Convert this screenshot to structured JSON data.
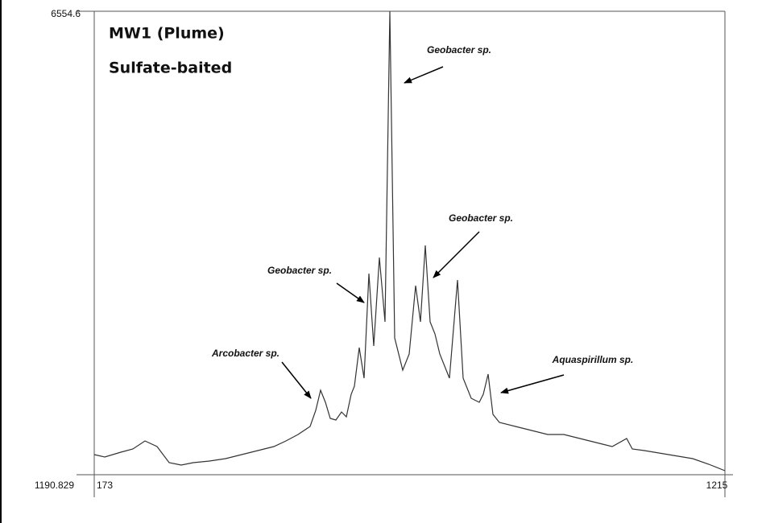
{
  "chart_data": {
    "type": "line",
    "title": "MW1 (Plume)",
    "subtitle": "Sulfate-baited",
    "xlim": [
      173,
      1215
    ],
    "ylim": [
      1190.829,
      6554.6
    ],
    "xticks": [
      173,
      1215
    ],
    "yticks": [
      1190.829,
      6554.6
    ],
    "color": "#333333",
    "annotations": [
      "Geobacter sp.",
      "Geobacter sp.",
      "Geobacter sp.",
      "Arcobacter sp.",
      "Aquaspirillum sp."
    ],
    "x": [
      173,
      190.3,
      216.9,
      236.9,
      256.8,
      276.8,
      296.8,
      316.7,
      336.7,
      363.3,
      389.9,
      416.5,
      443.1,
      469.8,
      489.7,
      509.7,
      529.7,
      538.9,
      547.0,
      554.9,
      562.9,
      572.2,
      581.6,
      589.5,
      597.5,
      602.8,
      610.8,
      618.8,
      626.8,
      634.8,
      644.1,
      653.4,
      661.4,
      669.4,
      682.7,
      693.3,
      704.0,
      712.0,
      720.0,
      728.0,
      735.9,
      743.9,
      751.9,
      759.9,
      773.2,
      782.5,
      795.8,
      809.1,
      815.8,
      823.8,
      831.7,
      842.4,
      869.0,
      895.6,
      922.2,
      948.9,
      975.5,
      1002.1,
      1028.7,
      1052.7,
      1062.0,
      1082.0,
      1121.9,
      1161.8,
      1188.4,
      1215
    ],
    "values": [
      1423.6,
      1395.7,
      1451.5,
      1488.8,
      1581.9,
      1516.7,
      1330.5,
      1302.5,
      1330.5,
      1349.1,
      1377.0,
      1423.6,
      1470.2,
      1516.7,
      1581.9,
      1656.4,
      1749.5,
      1935.8,
      2168.6,
      2028.9,
      1842.6,
      1824.0,
      1917.1,
      1861.3,
      2122.0,
      2215.1,
      2662.1,
      2308.2,
      3518.8,
      2680.7,
      3705.0,
      2960.1,
      6554.6,
      2773.8,
      2401.4,
      2587.6,
      3379.1,
      2960.1,
      3844.7,
      2960.1,
      2820.4,
      2587.6,
      2447.9,
      2308.2,
      3444.3,
      2308.2,
      2075.4,
      2028.9,
      2122.0,
      2354.8,
      1889.2,
      1796.1,
      1749.5,
      1703.0,
      1656.4,
      1656.4,
      1609.8,
      1563.3,
      1516.7,
      1609.8,
      1488.8,
      1470.2,
      1423.6,
      1377.0,
      1311.9,
      1237.4
    ]
  }
}
